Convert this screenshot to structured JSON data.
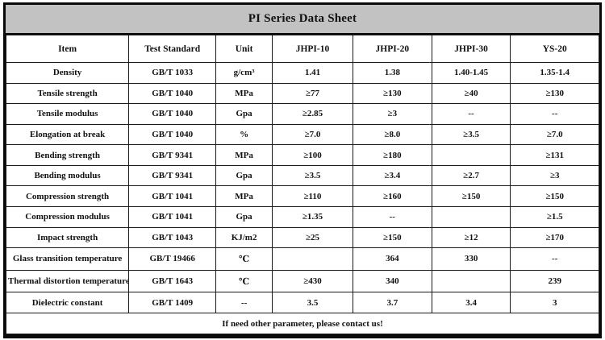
{
  "title": "PI Series Data Sheet",
  "columns": [
    "Item",
    "Test Standard",
    "Unit",
    "JHPI-10",
    "JHPI-20",
    "JHPI-30",
    "YS-20"
  ],
  "rows": [
    {
      "item": "Density",
      "standard": "GB/T 1033",
      "unit": "g/cm³",
      "values": [
        "1.41",
        "1.38",
        "1.40-1.45",
        "1.35-1.4"
      ]
    },
    {
      "item": "Tensile strength",
      "standard": "GB/T 1040",
      "unit": "MPa",
      "values": [
        "≥77",
        "≥130",
        "≥40",
        "≥130"
      ]
    },
    {
      "item": "Tensile modulus",
      "standard": "GB/T 1040",
      "unit": "Gpa",
      "values": [
        "≥2.85",
        "≥3",
        "--",
        "--"
      ]
    },
    {
      "item": "Elongation at break",
      "standard": "GB/T 1040",
      "unit": "%",
      "values": [
        "≥7.0",
        "≥8.0",
        "≥3.5",
        "≥7.0"
      ]
    },
    {
      "item": "Bending strength",
      "standard": "GB/T 9341",
      "unit": "MPa",
      "values": [
        "≥100",
        "≥180",
        "",
        "≥131"
      ]
    },
    {
      "item": "Bending modulus",
      "standard": "GB/T 9341",
      "unit": "Gpa",
      "values": [
        "≥3.5",
        "≥3.4",
        "≥2.7",
        "≥3"
      ]
    },
    {
      "item": "Compression strength",
      "standard": "GB/T 1041",
      "unit": "MPa",
      "values": [
        "≥110",
        "≥160",
        "≥150",
        "≥150"
      ]
    },
    {
      "item": "Compression modulus",
      "standard": "GB/T 1041",
      "unit": "Gpa",
      "values": [
        "≥1.35",
        "--",
        "",
        "≥1.5"
      ]
    },
    {
      "item": "Impact strength",
      "standard": "GB/T 1043",
      "unit": "KJ/m2",
      "values": [
        "≥25",
        "≥150",
        "≥12",
        "≥170"
      ]
    },
    {
      "item": "Glass transition temperature",
      "standard": "GB/T 19466",
      "unit": "℃",
      "values": [
        "",
        "364",
        "330",
        "--"
      ]
    },
    {
      "item": "Thermal distortion temperature",
      "standard": "GB/T 1643",
      "unit": "℃",
      "values": [
        "≥430",
        "340",
        "",
        "239"
      ]
    },
    {
      "item": "Dielectric constant",
      "standard": "GB/T 1409",
      "unit": "--",
      "values": [
        "3.5",
        "3.7",
        "3.4",
        "3"
      ]
    }
  ],
  "footer": "If need other parameter, please contact us!",
  "colors": {
    "title_bg": "#c2c2c2",
    "border": "#1a1a1a",
    "text": "#111111",
    "background": "#ffffff"
  }
}
